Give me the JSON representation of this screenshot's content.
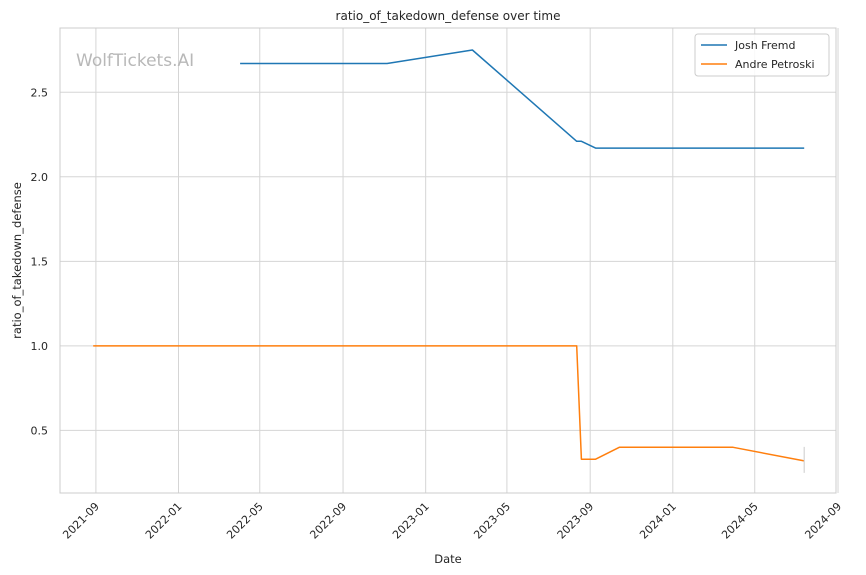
{
  "chart_data": {
    "type": "line",
    "title": "ratio_of_takedown_defense over time",
    "xlabel": "Date",
    "ylabel": "ratio_of_takedown_defense",
    "watermark": "WolfTickets.AI",
    "x_ticks": [
      "2021-09",
      "2022-01",
      "2022-05",
      "2022-09",
      "2023-01",
      "2023-05",
      "2023-09",
      "2024-01",
      "2024-05",
      "2024-09"
    ],
    "y_ticks": [
      "0.5",
      "1.0",
      "1.5",
      "2.0",
      "2.5"
    ],
    "ylim": [
      0.13,
      2.88
    ],
    "xlim": [
      "2021-07-10",
      "2024-08-29"
    ],
    "grid": true,
    "legend_position": "top-right",
    "series": [
      {
        "name": "Josh Fremd",
        "color": "#1f77b4",
        "x": [
          "2022-04-02",
          "2022-11-05",
          "2023-03-11",
          "2023-08-12",
          "2023-08-19",
          "2023-09-09",
          "2024-07-13"
        ],
        "y": [
          2.67,
          2.67,
          2.75,
          2.21,
          2.21,
          2.17,
          2.17
        ]
      },
      {
        "name": "Andre Petroski",
        "color": "#ff7f0e",
        "x": [
          "2021-08-28",
          "2023-08-12",
          "2023-08-19",
          "2023-09-09",
          "2023-10-14",
          "2024-03-30",
          "2024-07-13"
        ],
        "y": [
          1.0,
          1.0,
          0.33,
          0.33,
          0.4,
          0.4,
          0.32
        ]
      }
    ]
  }
}
